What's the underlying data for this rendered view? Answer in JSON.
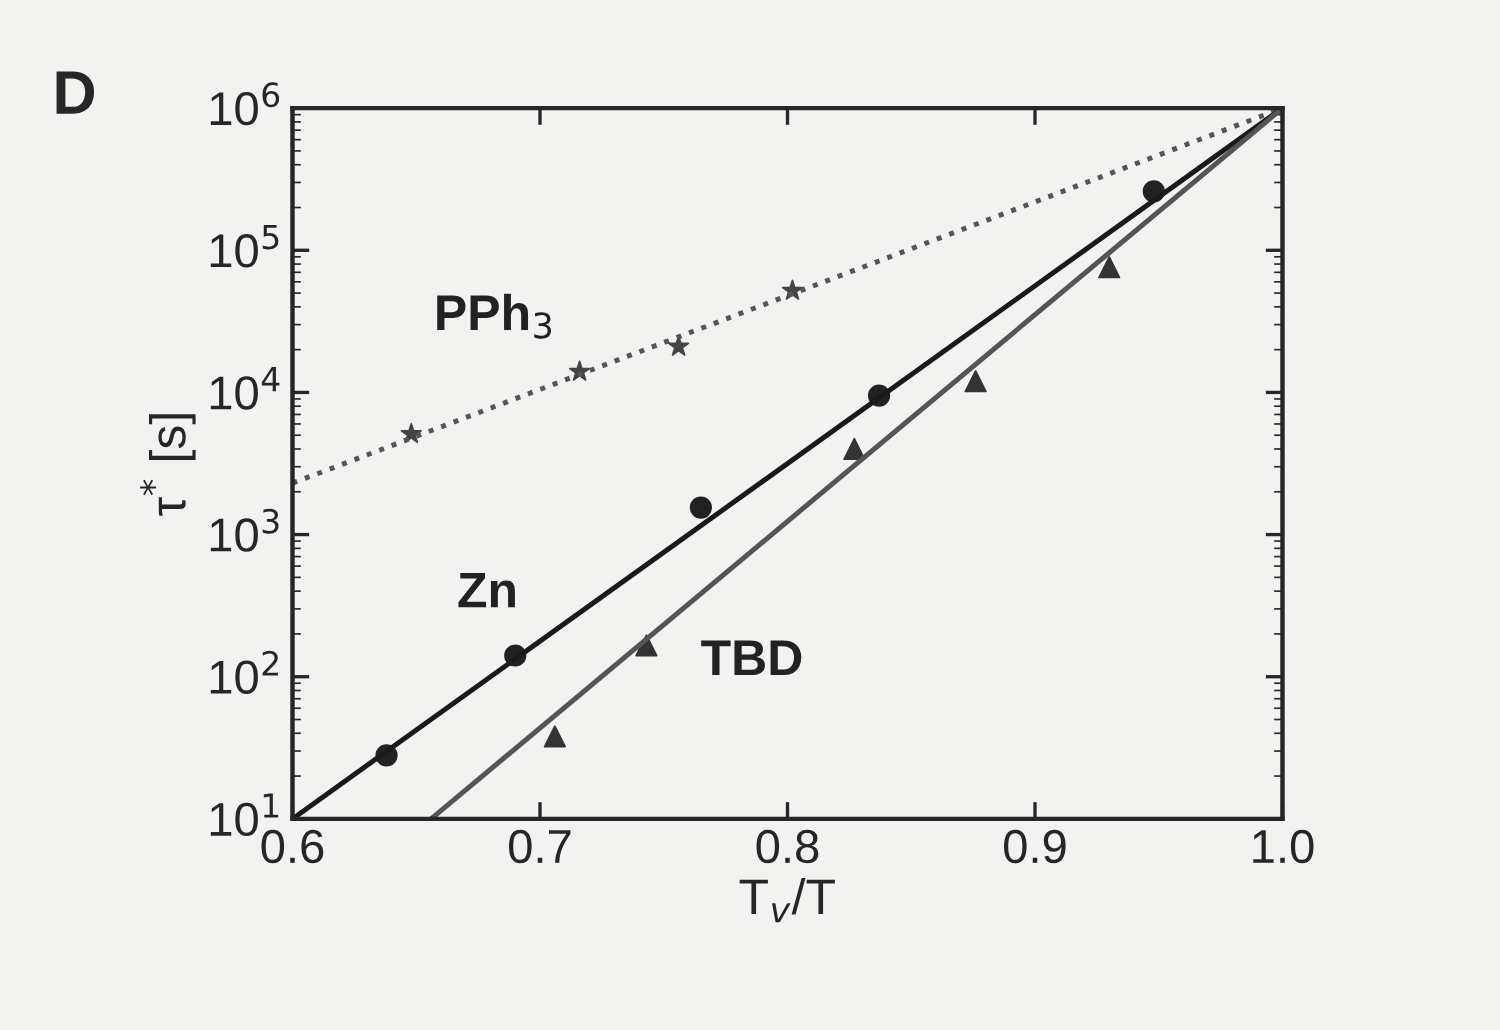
{
  "chart_data": {
    "type": "scatter",
    "xlabel": "T$_{v}$/T",
    "ylabel": "τ$^{*}$ [s]",
    "log": "y",
    "xlim": [
      0.6,
      1.0
    ],
    "ylim": [
      10,
      1000000
    ],
    "xticks": [
      {
        "value": 0.6,
        "label": "0.6"
      },
      {
        "value": 0.7,
        "label": "0.7"
      },
      {
        "value": 0.8,
        "label": "0.8"
      },
      {
        "value": 0.9,
        "label": "0.9"
      },
      {
        "value": 1.0,
        "label": "1.0"
      }
    ],
    "yticks": [
      {
        "value": 10,
        "label": "10$^{1}$"
      },
      {
        "value": 100,
        "label": "10$^{2}$"
      },
      {
        "value": 1000,
        "label": "10$^{3}$"
      },
      {
        "value": 10000,
        "label": "10$^{4}$"
      },
      {
        "value": 100000,
        "label": "10$^{5}$"
      },
      {
        "value": 1000000,
        "label": "10$^{6}$"
      }
    ],
    "grid": false,
    "legend": false,
    "series": [
      {
        "name": "PPh$_{3}$",
        "marker": "star",
        "color": "#444444",
        "x": [
          0.648,
          0.716,
          0.756,
          0.802
        ],
        "values": [
          5100,
          14000,
          21000,
          52000
        ]
      },
      {
        "name": "Zn",
        "marker": "circle",
        "color": "#222222",
        "x": [
          0.638,
          0.69,
          0.765,
          0.837,
          0.948
        ],
        "values": [
          28,
          141,
          1550,
          9500,
          260000
        ]
      },
      {
        "name": "TBD",
        "marker": "triangle",
        "color": "#333333",
        "x": [
          0.706,
          0.743,
          0.827,
          0.876,
          0.93
        ],
        "values": [
          38,
          166,
          4000,
          12000,
          76000
        ]
      },
      {
        "type": "line",
        "line_style": "dotted",
        "color": "#555555",
        "x": [
          0.6,
          1.0
        ],
        "values": [
          2300,
          1000000
        ]
      },
      {
        "type": "line",
        "line_style": "solid",
        "color": "#1a1a1a",
        "x": [
          0.6,
          1.0
        ],
        "values": [
          10,
          1000000
        ]
      },
      {
        "type": "line",
        "line_style": "solid",
        "color": "#555555",
        "x": [
          0.656,
          1.0
        ],
        "values": [
          10,
          1000000
        ]
      }
    ],
    "annotations": [
      "D"
    ]
  }
}
